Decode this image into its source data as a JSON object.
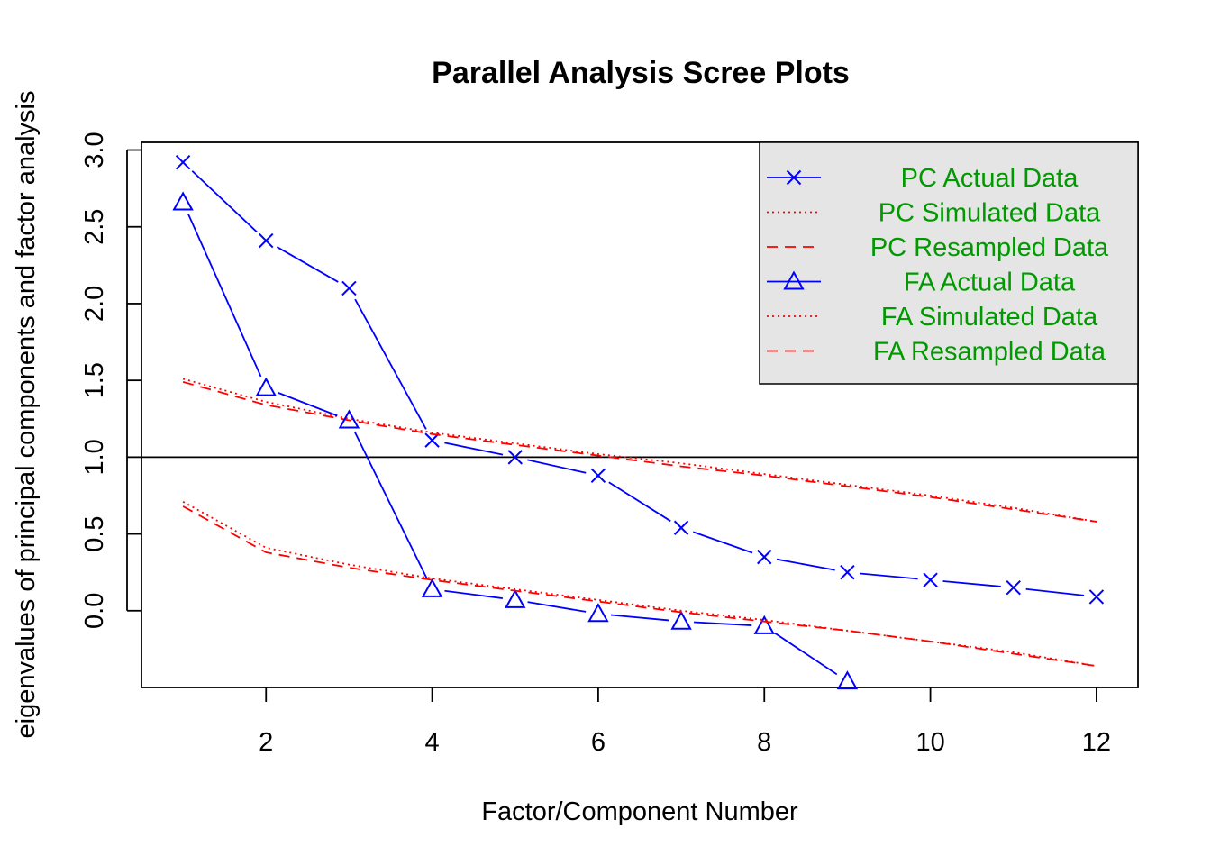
{
  "chart_data": {
    "type": "line",
    "title": "Parallel Analysis Scree Plots",
    "xlabel": "Factor/Component Number",
    "ylabel": "eigenvalues of principal components and factor analysis",
    "xlim": [
      0.5,
      12.5
    ],
    "ylim": [
      -0.5,
      3.05
    ],
    "x_ticks": [
      2,
      4,
      6,
      8,
      10,
      12
    ],
    "x_tick_labels": [
      "2",
      "4",
      "6",
      "8",
      "10",
      "12"
    ],
    "y_ticks": [
      0.0,
      0.5,
      1.0,
      1.5,
      2.0,
      2.5,
      3.0
    ],
    "y_tick_labels": [
      "0.0",
      "0.5",
      "1.0",
      "1.5",
      "2.0",
      "2.5",
      "3.0"
    ],
    "reference_line": {
      "y": 1.0,
      "color": "#000000"
    },
    "x": [
      1,
      2,
      3,
      4,
      5,
      6,
      7,
      8,
      9,
      10,
      11,
      12
    ],
    "series": [
      {
        "name": "PC  Actual Data",
        "color": "#0000ff",
        "line": "solid",
        "marker": "cross",
        "values": [
          2.92,
          2.41,
          2.1,
          1.11,
          1.0,
          0.88,
          0.54,
          0.35,
          0.25,
          0.2,
          0.15,
          0.09
        ]
      },
      {
        "name": "PC  Simulated Data",
        "color": "#ff0000",
        "line": "dotted",
        "marker": "none",
        "values": [
          1.51,
          1.36,
          1.25,
          1.16,
          1.09,
          1.02,
          0.96,
          0.89,
          0.82,
          0.75,
          0.67,
          0.58
        ]
      },
      {
        "name": "PC  Resampled Data",
        "color": "#ff0000",
        "line": "dashed",
        "marker": "none",
        "values": [
          1.49,
          1.34,
          1.24,
          1.15,
          1.08,
          1.01,
          0.94,
          0.88,
          0.81,
          0.74,
          0.66,
          0.58
        ]
      },
      {
        "name": "FA  Actual Data",
        "color": "#0000ff",
        "line": "solid",
        "marker": "triangle",
        "values": [
          2.66,
          1.45,
          1.24,
          0.14,
          0.07,
          -0.02,
          -0.07,
          -0.1,
          -0.46,
          null,
          null,
          null
        ]
      },
      {
        "name": "FA  Simulated Data",
        "color": "#ff0000",
        "line": "dotted",
        "marker": "none",
        "values": [
          0.71,
          0.41,
          0.3,
          0.21,
          0.14,
          0.07,
          0.0,
          -0.06,
          -0.13,
          -0.2,
          -0.27,
          -0.36
        ]
      },
      {
        "name": "FA  Resampled Data",
        "color": "#ff0000",
        "line": "dashed",
        "marker": "none",
        "values": [
          0.68,
          0.38,
          0.28,
          0.2,
          0.13,
          0.06,
          -0.01,
          -0.07,
          -0.13,
          -0.2,
          -0.28,
          -0.36
        ]
      }
    ],
    "legend": {
      "placement": "top-right",
      "background": "#e5e5e5",
      "text_color": "#009900"
    },
    "grid": false
  }
}
